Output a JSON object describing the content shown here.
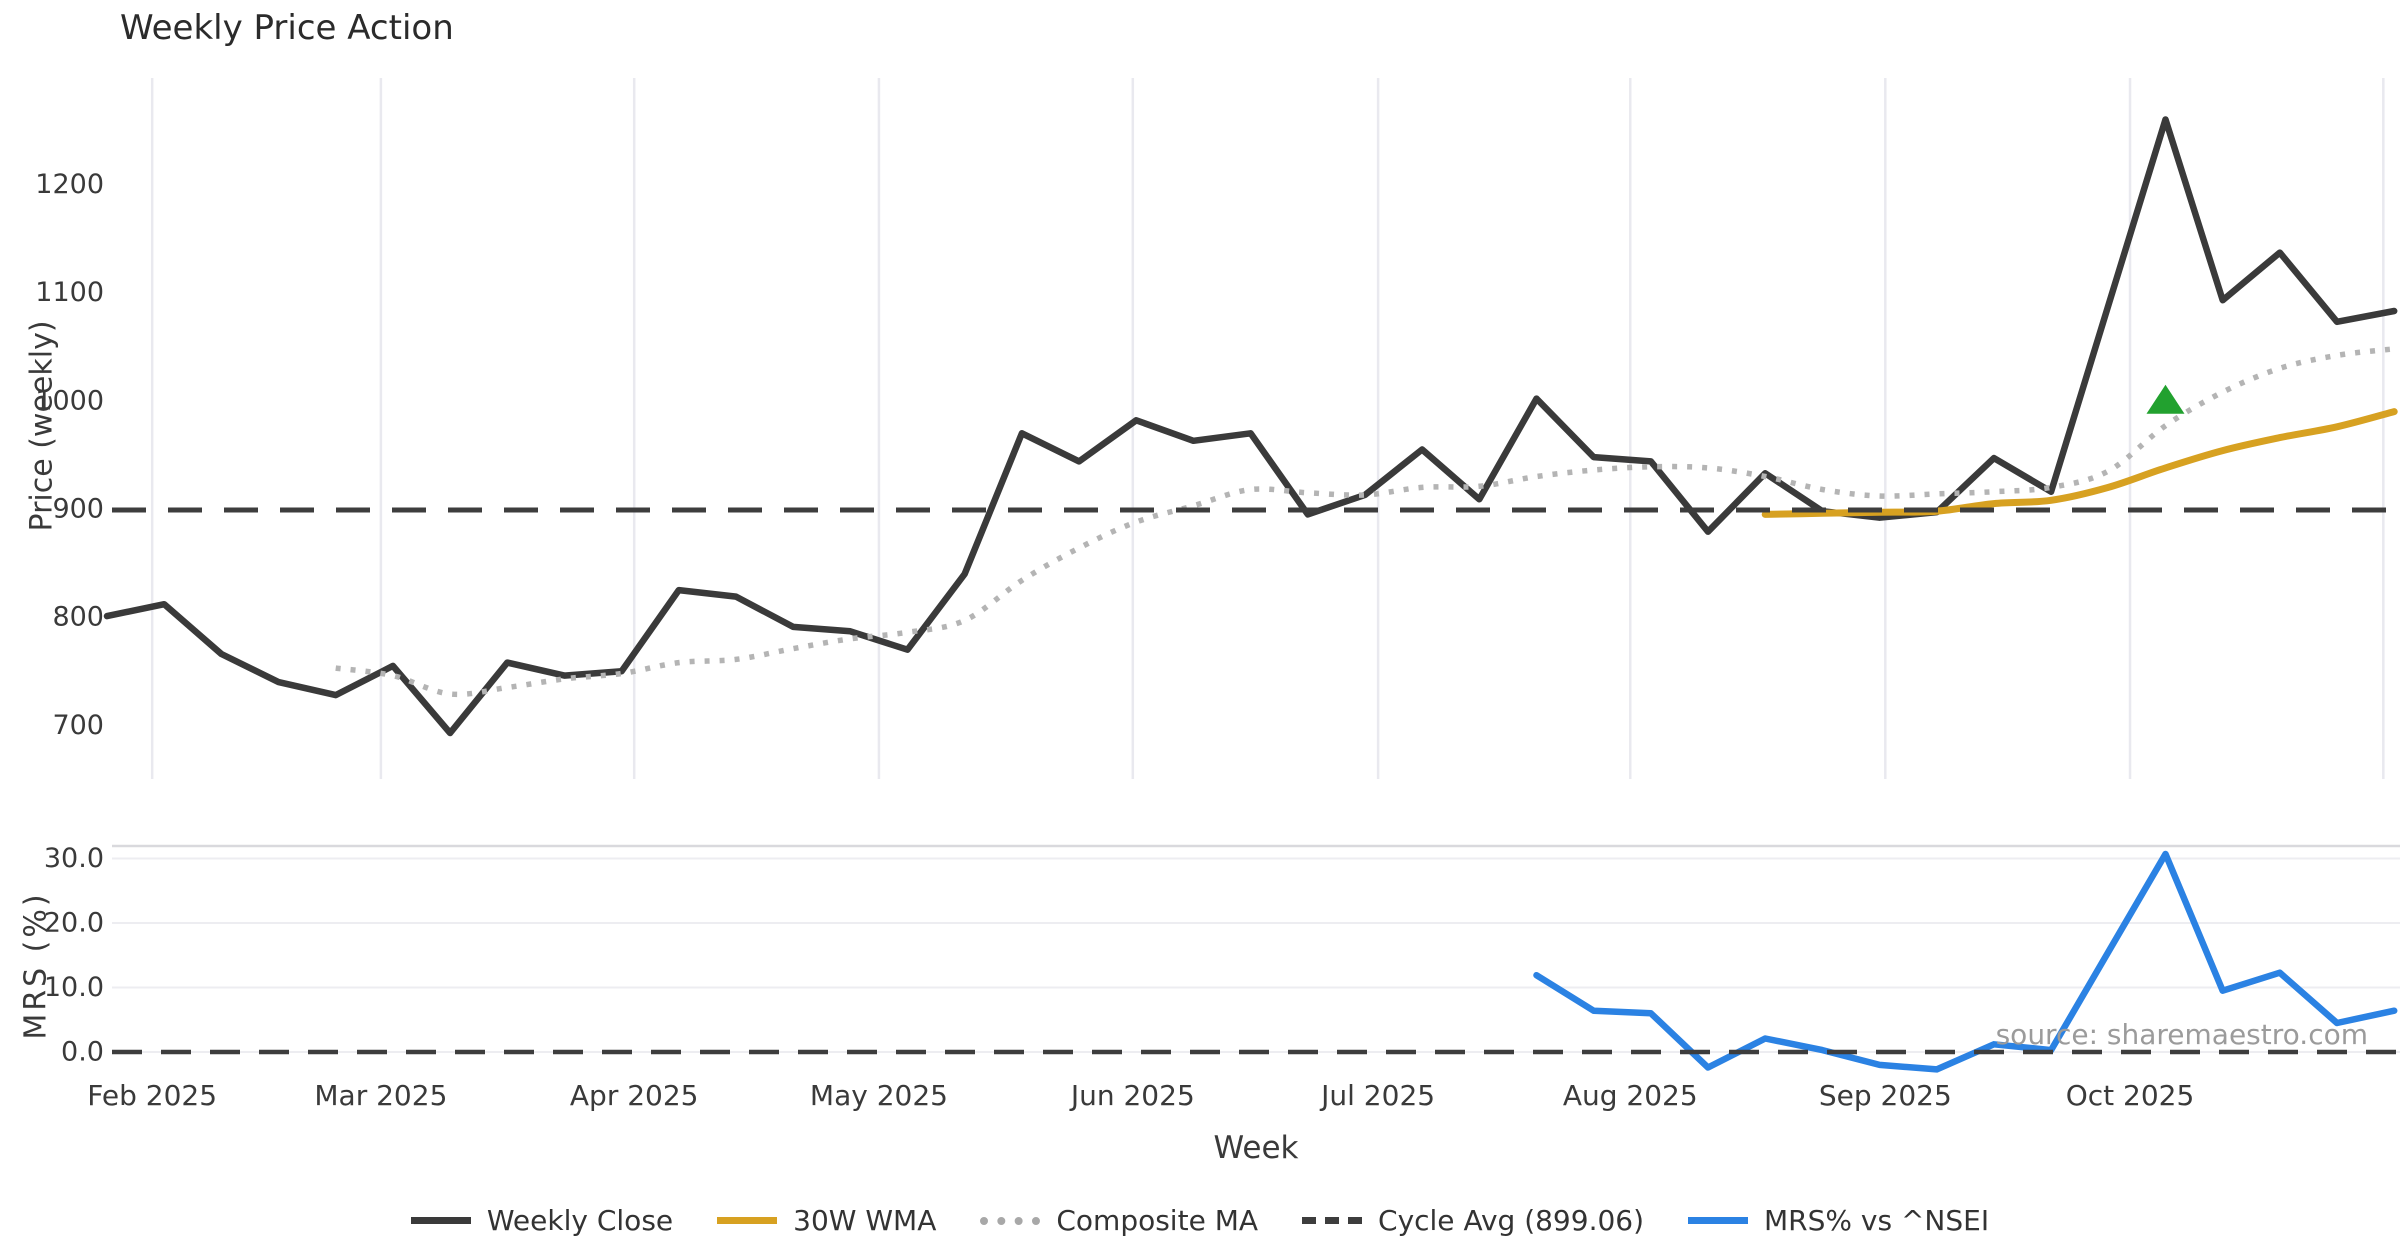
{
  "title": "Weekly Price Action",
  "source_note": "source: sharemaestro.com",
  "xlabel": "Week",
  "price_panel": {
    "ylabel": "Price (weekly)",
    "yticks": [
      700,
      800,
      900,
      1000,
      1100,
      1200
    ]
  },
  "mrs_panel": {
    "ylabel": "MRS (%)",
    "ytick_labels": [
      "0.0",
      "10.0",
      "20.0",
      "30.0"
    ],
    "yticks": [
      0,
      10,
      20,
      30
    ]
  },
  "legend": {
    "items": [
      {
        "label": "Weekly Close",
        "style": "solid",
        "color": "#3a3a3a"
      },
      {
        "label": "30W WMA",
        "style": "solid",
        "color": "#d7a121"
      },
      {
        "label": "Composite MA",
        "style": "dotted",
        "color": "#a8a8a8"
      },
      {
        "label": "Cycle Avg (899.06)",
        "style": "dashed",
        "color": "#3d3d3d"
      },
      {
        "label": "MRS% vs ^NSEI",
        "style": "solid",
        "color": "#2b82e3"
      }
    ]
  },
  "colors": {
    "weekly_close": "#3a3a3a",
    "wma_30w": "#d7a121",
    "composite_ma": "#b4b4b4",
    "cycle_avg": "#3d3d3d",
    "mrs_line": "#2b82e3",
    "marker_green": "#22a12f",
    "gridline": "#e9e9ef",
    "gridline_h": "#ededf1",
    "panel_top_line": "#d9d9dd",
    "tick_text": "#3a3a3a",
    "title_text": "#2b2b2b",
    "source_text": "#9b9b9b"
  },
  "chart_data": [
    {
      "type": "line",
      "panel": "price",
      "title": "Weekly Price Action",
      "xlabel": "Week",
      "ylabel": "Price (weekly)",
      "x_unit": "week index (0-40), weekly closes spanning the months labeled Feb 2025 - Oct 2025",
      "ylim": [
        650,
        1300
      ],
      "grid": "vertical month gridlines only",
      "legend_position": "bottom center",
      "x_ticks": [
        {
          "label": "Feb 2025",
          "week": 0.79
        },
        {
          "label": "Mar 2025",
          "week": 4.79
        },
        {
          "label": "Apr 2025",
          "week": 9.22
        },
        {
          "label": "May 2025",
          "week": 13.5
        },
        {
          "label": "Jun 2025",
          "week": 17.94
        },
        {
          "label": "Jul 2025",
          "week": 22.23
        },
        {
          "label": "Aug 2025",
          "week": 26.64
        },
        {
          "label": "Sep 2025",
          "week": 31.1
        },
        {
          "label": "Oct 2025",
          "week": 35.38
        },
        {
          "label": "",
          "week": 39.81
        }
      ],
      "series": [
        {
          "name": "Weekly Close",
          "style": "solid",
          "smooth": false,
          "width": 6.5,
          "color": "#3a3a3a",
          "start_index": 0,
          "values": [
            801,
            812,
            766,
            740,
            728,
            755,
            693,
            758,
            746,
            750,
            825,
            819,
            791,
            787,
            770,
            840,
            970,
            944,
            982,
            963,
            970,
            895,
            913,
            955,
            909,
            1002,
            948,
            944,
            879,
            933,
            898,
            892,
            897,
            947,
            916,
            1088,
            1260,
            1093,
            1137,
            1073,
            1083
          ]
        },
        {
          "name": "Composite MA",
          "style": "dotted",
          "smooth": true,
          "width": 5.5,
          "color": "#b4b4b4",
          "start_index": 4,
          "values": [
            753,
            746,
            729,
            735,
            743,
            748,
            758,
            761,
            771,
            780,
            786,
            797,
            834,
            864,
            888,
            903,
            918,
            915,
            913,
            920,
            921,
            930,
            936,
            939,
            938,
            930,
            918,
            912,
            914,
            916,
            920,
            935,
            977,
            1008,
            1030,
            1042,
            1048
          ]
        },
        {
          "name": "30W WMA",
          "style": "solid",
          "smooth": true,
          "width": 7,
          "color": "#d7a121",
          "start_index": 29,
          "values": [
            895,
            896,
            897,
            898,
            905,
            908,
            920,
            938,
            954,
            966,
            976,
            990
          ]
        },
        {
          "name": "Cycle Avg",
          "style": "dashed",
          "color": "#3d3d3d",
          "constant": 899.06
        }
      ],
      "markers": [
        {
          "shape": "triangle-up",
          "color": "#22a12f",
          "week_index": 36,
          "y": 1000
        }
      ]
    },
    {
      "type": "line",
      "panel": "mrs",
      "ylabel": "MRS (%)",
      "ylim": [
        -4,
        32
      ],
      "grid": "horizontal gridlines at 0, 10, 20, 30",
      "series": [
        {
          "name": "MRS% vs ^NSEI",
          "style": "solid",
          "smooth": false,
          "width": 6.5,
          "color": "#2b82e3",
          "start_index": 25,
          "values": [
            11.9,
            6.4,
            6.0,
            -2.4,
            2.1,
            0.3,
            -2.0,
            -2.7,
            1.2,
            0.3,
            15.5,
            30.7,
            9.5,
            12.3,
            4.5,
            6.4
          ]
        },
        {
          "name": "Zero line",
          "style": "dashed",
          "color": "#3d3d3d",
          "constant": 0
        }
      ]
    }
  ]
}
